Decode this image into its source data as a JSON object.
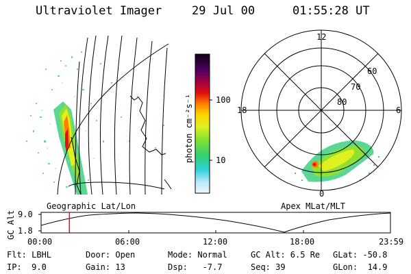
{
  "header": {
    "instrument": "Ultraviolet Imager",
    "date": "29 Jul 00",
    "time": "01:55:28 UT"
  },
  "left_panel": {
    "caption": "Geographic Lat/Lon"
  },
  "colorbar": {
    "unit_label": "photon cm⁻²s⁻¹",
    "ticks": [
      "100",
      "10"
    ],
    "scale": "log"
  },
  "polar_plot": {
    "caption": "Apex MLat/MLT",
    "mlt_labels": [
      "12",
      "18",
      "6",
      "0"
    ],
    "lat_labels": [
      "60",
      "70",
      "80"
    ]
  },
  "timeline": {
    "ylabel": "GC Alt",
    "y_ticks": [
      "9.0",
      "1.8"
    ],
    "x_ticks": [
      "00:00",
      "06:00",
      "12:00",
      "18:00",
      "23:59"
    ],
    "current_time_fraction": 0.081
  },
  "status": {
    "filter": "Flt: LBHL",
    "ip": "IP:  9.0",
    "door": "Door: Open",
    "gain": "Gain: 13",
    "mode": "Mode: Normal",
    "dsp": "Dsp:   -7.7",
    "gc_alt": "GC Alt: 6.5 Re",
    "seq": "Seq: 39",
    "glat": "GLat: -50.8",
    "glon": "GLon:  14.9"
  },
  "colors": {
    "cursor": "#e01010",
    "ink": "#000000"
  }
}
